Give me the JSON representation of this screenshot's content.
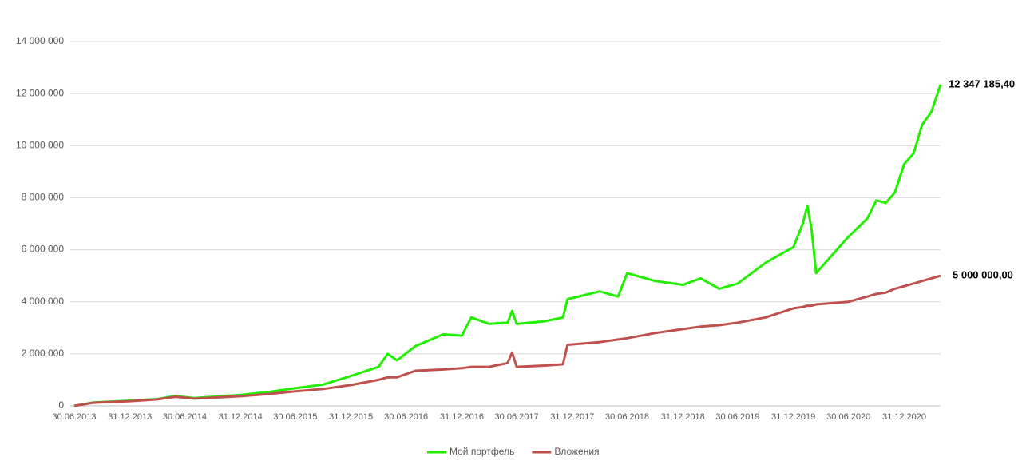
{
  "chart_data": {
    "type": "line",
    "x": [
      "30.06.2013",
      "31.08.2013",
      "31.12.2013",
      "31.03.2014",
      "31.05.2014",
      "31.07.2014",
      "31.12.2014",
      "31.03.2015",
      "30.06.2015",
      "30.09.2015",
      "31.12.2015",
      "31.03.2016",
      "30.04.2016",
      "31.05.2016",
      "31.07.2016",
      "31.10.2016",
      "31.12.2016",
      "31.01.2017",
      "31.03.2017",
      "31.05.2017",
      "15.06.2017",
      "30.06.2017",
      "30.09.2017",
      "30.11.2017",
      "15.12.2017",
      "31.03.2018",
      "31.05.2018",
      "30.06.2018",
      "30.09.2018",
      "31.12.2018",
      "28.02.2019",
      "30.04.2019",
      "30.06.2019",
      "30.09.2019",
      "31.12.2019",
      "31.01.2020",
      "15.02.2020",
      "29.02.2020",
      "15.03.2020",
      "30.06.2020",
      "31.08.2020",
      "30.09.2020",
      "31.10.2020",
      "30.11.2020",
      "31.12.2020",
      "31.01.2021",
      "28.02.2021",
      "31.03.2021",
      "30.04.2021"
    ],
    "series": [
      {
        "name": "Мой портфель",
        "color": "#22ee00",
        "values": [
          0,
          130000,
          200000,
          260000,
          380000,
          300000,
          420000,
          530000,
          680000,
          820000,
          1150000,
          1500000,
          2000000,
          1750000,
          2300000,
          2750000,
          2700000,
          3400000,
          3150000,
          3200000,
          3650000,
          3150000,
          3250000,
          3400000,
          4100000,
          4400000,
          4200000,
          5100000,
          4800000,
          4650000,
          4900000,
          4500000,
          4700000,
          5500000,
          6100000,
          7000000,
          7700000,
          6800000,
          5100000,
          6500000,
          7200000,
          7900000,
          7800000,
          8200000,
          9300000,
          9700000,
          10800000,
          11300000,
          12347185.4
        ],
        "value_labels": [
          null,
          null,
          null,
          null,
          null,
          null,
          null,
          null,
          null,
          null,
          null,
          null,
          null,
          null,
          null,
          null,
          null,
          null,
          null,
          null,
          null,
          null,
          null,
          null,
          null,
          null,
          null,
          null,
          null,
          null,
          null,
          null,
          null,
          null,
          null,
          null,
          null,
          null,
          null,
          null,
          null,
          null,
          null,
          null,
          null,
          null,
          null,
          null,
          "12 347 185,40"
        ]
      },
      {
        "name": "Вложения",
        "color": "#c0504d",
        "values": [
          0,
          120000,
          180000,
          250000,
          350000,
          280000,
          370000,
          450000,
          560000,
          650000,
          800000,
          1000000,
          1100000,
          1100000,
          1350000,
          1400000,
          1450000,
          1500000,
          1500000,
          1650000,
          2050000,
          1500000,
          1550000,
          1600000,
          2350000,
          2450000,
          2550000,
          2600000,
          2800000,
          2950000,
          3050000,
          3100000,
          3200000,
          3400000,
          3750000,
          3800000,
          3850000,
          3850000,
          3900000,
          4000000,
          4200000,
          4300000,
          4350000,
          4500000,
          4600000,
          4700000,
          4800000,
          4900000,
          5000000
        ],
        "value_labels": [
          null,
          null,
          null,
          null,
          null,
          null,
          null,
          null,
          null,
          null,
          null,
          null,
          null,
          null,
          null,
          null,
          null,
          null,
          null,
          null,
          null,
          null,
          null,
          null,
          null,
          null,
          null,
          null,
          null,
          null,
          null,
          null,
          null,
          null,
          null,
          null,
          null,
          null,
          null,
          null,
          null,
          null,
          null,
          null,
          null,
          null,
          null,
          null,
          "5 000 000,00"
        ]
      }
    ],
    "xlim": [
      "30.06.2013",
      "30.04.2021"
    ],
    "xticks": [
      "30.06.2013",
      "31.12.2013",
      "30.06.2014",
      "31.12.2014",
      "30.06.2015",
      "31.12.2015",
      "30.06.2016",
      "31.12.2016",
      "30.06.2017",
      "31.12.2017",
      "30.06.2018",
      "31.12.2018",
      "30.06.2019",
      "31.12.2019",
      "30.06.2020",
      "31.12.2020"
    ],
    "ylim": [
      0,
      14000000
    ],
    "yticks": [
      0,
      {
        "value": 2000000,
        "label": "2 000 000"
      },
      {
        "value": 4000000,
        "label": "4 000 000"
      },
      {
        "value": 6000000,
        "label": "6 000 000"
      },
      {
        "value": 8000000,
        "label": "8 000 000"
      },
      {
        "value": 10000000,
        "label": "10 000 000"
      },
      {
        "value": 12000000,
        "label": "12 000 000"
      },
      {
        "value": 14000000,
        "label": "14 000 000"
      }
    ],
    "grid": true,
    "legend": "bottom"
  }
}
